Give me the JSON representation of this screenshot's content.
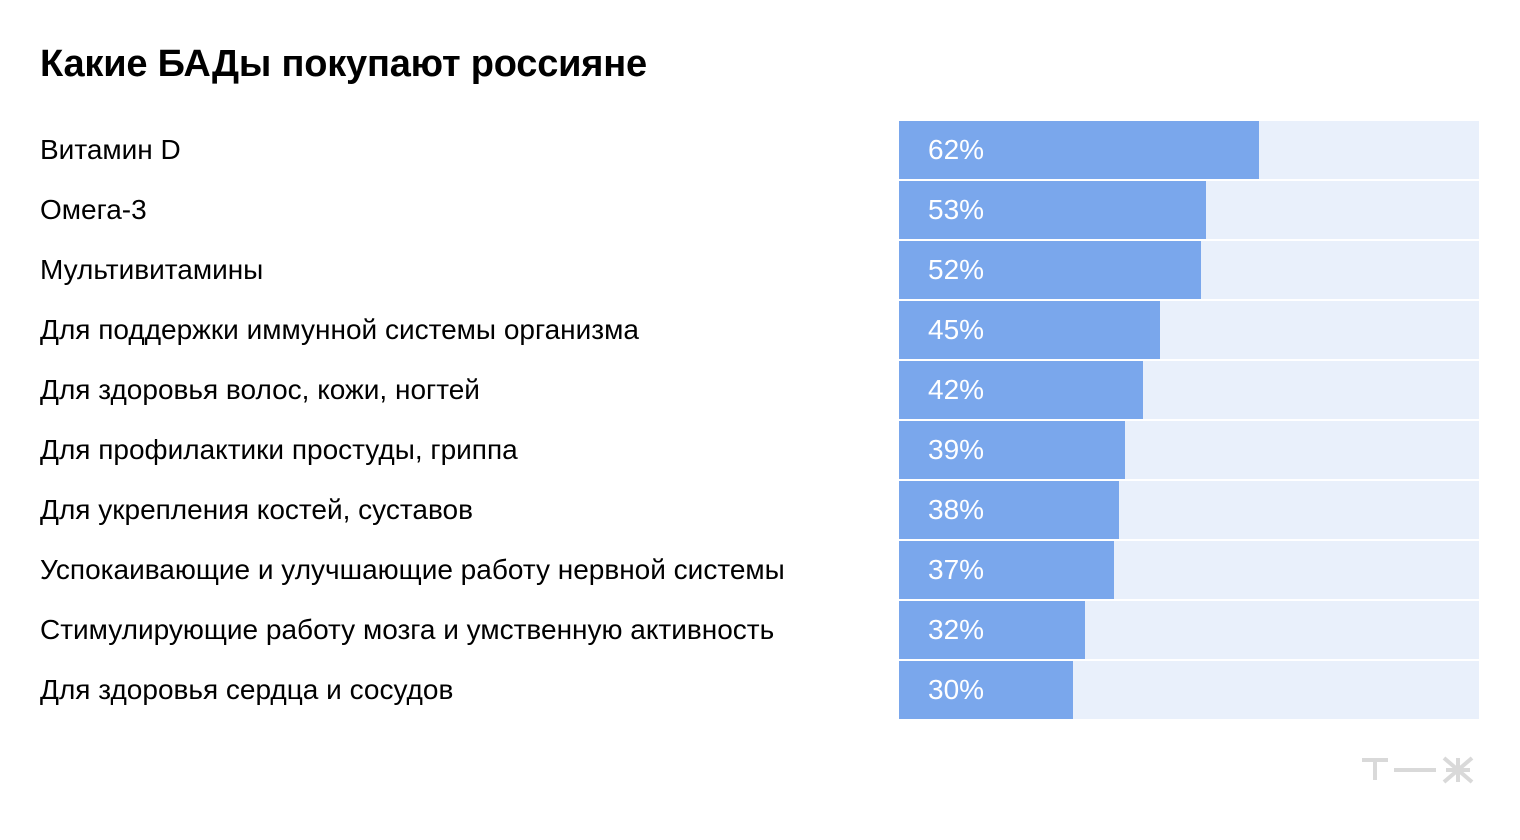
{
  "title": "Какие БАДы покупают россияне",
  "colors": {
    "bar": "#7aa7ec",
    "track": "#e9f0fb",
    "label_text": "#000000",
    "value_text": "#ffffff",
    "logo": "#d9d9d9"
  },
  "logo": {
    "icon": "tzh-logo",
    "text": "т—ж"
  },
  "chart_data": {
    "type": "bar",
    "orientation": "horizontal",
    "title": "Какие БАДы покупают россияне",
    "unit": "%",
    "xlim": [
      0,
      100
    ],
    "grid": false,
    "categories": [
      "Витамин D",
      "Омега-3",
      "Мультивитамины",
      "Для поддержки иммунной системы организма",
      "Для здоровья волос, кожи, ногтей",
      "Для профилактики простуды, гриппа",
      "Для укрепления костей, суставов",
      "Успокаивающие и улучшающие работу нервной системы",
      "Стимулирующие работу мозга и умственную активность",
      "Для здоровья сердца и сосудов"
    ],
    "values": [
      62,
      53,
      52,
      45,
      42,
      39,
      38,
      37,
      32,
      30
    ],
    "value_labels": [
      "62%",
      "53%",
      "52%",
      "45%",
      "42%",
      "39%",
      "38%",
      "37%",
      "32%",
      "30%"
    ]
  }
}
